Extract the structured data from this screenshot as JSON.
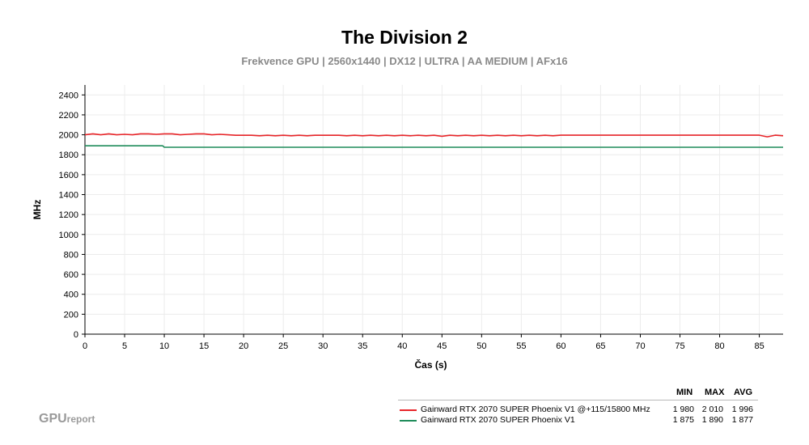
{
  "chart_data": {
    "type": "line",
    "title": "The Division 2",
    "subtitle": "Frekvence GPU | 2560x1440 | DX12 | ULTRA | AA MEDIUM | AFx16",
    "xlabel": "Čas (s)",
    "ylabel": "MHz",
    "xlim": [
      0,
      88
    ],
    "ylim": [
      0,
      2500
    ],
    "xticks": [
      0,
      5,
      10,
      15,
      20,
      25,
      30,
      35,
      40,
      45,
      50,
      55,
      60,
      65,
      70,
      75,
      80,
      85
    ],
    "yticks": [
      0,
      200,
      400,
      600,
      800,
      1000,
      1200,
      1400,
      1600,
      1800,
      2000,
      2200,
      2400
    ],
    "grid": true,
    "legend_position": "bottom-right",
    "series": [
      {
        "name": "Gainward RTX 2070 SUPER Phoenix V1 @+115/15800 MHz",
        "color": "#e8262a",
        "x": [
          0,
          1,
          2,
          3,
          4,
          5,
          6,
          7,
          8,
          9,
          10,
          11,
          12,
          13,
          14,
          15,
          16,
          17,
          18,
          19,
          20,
          21,
          22,
          23,
          24,
          25,
          26,
          27,
          28,
          29,
          30,
          31,
          32,
          33,
          34,
          35,
          36,
          37,
          38,
          39,
          40,
          41,
          42,
          43,
          44,
          45,
          46,
          47,
          48,
          49,
          50,
          51,
          52,
          53,
          54,
          55,
          56,
          57,
          58,
          59,
          60,
          61,
          62,
          63,
          64,
          65,
          66,
          67,
          68,
          69,
          70,
          71,
          72,
          73,
          74,
          75,
          76,
          77,
          78,
          79,
          80,
          81,
          82,
          83,
          84,
          85,
          86,
          87,
          88
        ],
        "y": [
          2000,
          2010,
          2000,
          2010,
          2000,
          2005,
          2000,
          2010,
          2010,
          2005,
          2010,
          2010,
          2000,
          2005,
          2010,
          2010,
          2000,
          2005,
          2000,
          1995,
          1995,
          1995,
          1990,
          1995,
          1990,
          1995,
          1990,
          1995,
          1990,
          1995,
          1995,
          1995,
          1995,
          1990,
          1995,
          1990,
          1995,
          1990,
          1995,
          1990,
          1995,
          1990,
          1995,
          1990,
          1995,
          1985,
          1995,
          1990,
          1995,
          1990,
          1995,
          1990,
          1995,
          1990,
          1995,
          1990,
          1995,
          1990,
          1995,
          1990,
          1996,
          1996,
          1996,
          1996,
          1996,
          1996,
          1996,
          1996,
          1996,
          1996,
          1996,
          1996,
          1996,
          1996,
          1996,
          1996,
          1996,
          1996,
          1996,
          1996,
          1996,
          1996,
          1996,
          1996,
          1996,
          1996,
          1980,
          1996,
          1990
        ]
      },
      {
        "name": "Gainward RTX 2070 SUPER Phoenix V1",
        "color": "#1e8c5a",
        "x": [
          0,
          9.8,
          10,
          88
        ],
        "y": [
          1890,
          1890,
          1875,
          1875
        ]
      }
    ]
  },
  "legend": {
    "headers": {
      "min": "MIN",
      "max": "MAX",
      "avg": "AVG"
    },
    "rows": [
      {
        "label": "Gainward RTX 2070 SUPER Phoenix V1 @+115/15800 MHz",
        "color": "#e8262a",
        "min": "1 980",
        "max": "2 010",
        "avg": "1 996"
      },
      {
        "label": "Gainward RTX 2070 SUPER Phoenix V1",
        "color": "#1e8c5a",
        "min": "1 875",
        "max": "1 890",
        "avg": "1 877"
      }
    ]
  },
  "logo": {
    "bold": "GPU",
    "small": "report"
  }
}
